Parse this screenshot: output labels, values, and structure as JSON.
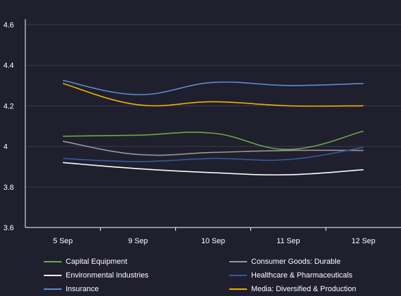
{
  "chart_data": {
    "type": "line",
    "categories": [
      "5 Sep",
      "9 Sep",
      "10 Sep",
      "11 Sep",
      "12 Sep"
    ],
    "ylim": [
      3.6,
      4.6
    ],
    "yticks": [
      "3.6",
      "3.8",
      "4",
      "4.2",
      "4.4",
      "4.6"
    ],
    "grid": true,
    "legend_position": "bottom",
    "series": [
      {
        "name": "Capital Equipment",
        "color": "#6cab46",
        "values": [
          4.05,
          4.055,
          4.065,
          3.985,
          4.075
        ]
      },
      {
        "name": "Consumer Goods: Durable",
        "color": "#9a9a9a",
        "values": [
          4.025,
          3.96,
          3.97,
          3.98,
          3.98
        ]
      },
      {
        "name": "Environmental Industries",
        "color": "#ffffff",
        "values": [
          3.92,
          3.89,
          3.87,
          3.86,
          3.885
        ]
      },
      {
        "name": "Healthcare & Pharmaceuticals",
        "color": "#335c9a",
        "values": [
          3.94,
          3.925,
          3.94,
          3.935,
          3.995
        ]
      },
      {
        "name": "Insurance",
        "color": "#5b8fcf",
        "values": [
          4.325,
          4.255,
          4.315,
          4.3,
          4.31
        ]
      },
      {
        "name": "Media: Diversified & Production",
        "color": "#f0b400",
        "values": [
          4.31,
          4.205,
          4.22,
          4.2,
          4.2
        ]
      }
    ]
  }
}
